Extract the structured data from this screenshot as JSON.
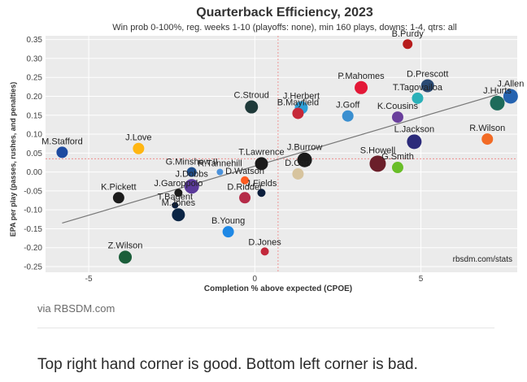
{
  "caption": "via RBSDM.com",
  "body_text": "Top right hand corner is good. Bottom left corner is bad.",
  "chart_data": {
    "type": "scatter",
    "title": "Quarterback Efficiency, 2023",
    "subtitle": "Win prob 0-100%, reg. weeks 1-10 (playoffs: none), min 160 plays, downs: 1-4, qtrs: all",
    "xlabel": "Completion % above expected (CPOE)",
    "ylabel": "EPA per play (passes, rushes, and penalties)",
    "source": "rbsdm.com/stats",
    "xlim": [
      -6.3,
      7.9
    ],
    "ylim": [
      -0.265,
      0.36
    ],
    "x_ticks": [
      -5,
      0,
      5
    ],
    "y_ticks": [
      -0.25,
      -0.2,
      -0.15,
      -0.1,
      -0.05,
      0.0,
      0.05,
      0.1,
      0.15,
      0.2,
      0.25,
      0.3,
      0.35
    ],
    "y_tick_labels": [
      "-0.25",
      "-0.20",
      "-0.15",
      "-0.10",
      "-0.05",
      "0.00",
      "0.05",
      "0.10",
      "0.15",
      "0.20",
      "0.25",
      "0.30",
      "0.35"
    ],
    "grid": true,
    "mean_x": 0.7,
    "mean_y": 0.035,
    "trend_line": {
      "x": [
        -5.8,
        7.3
      ],
      "y": [
        -0.135,
        0.205
      ]
    },
    "colors": {
      "panel_bg": "#ebebeb",
      "grid": "#ffffff",
      "mean_lines": "#f08080",
      "trend": "#777777"
    },
    "points": [
      {
        "name": "B.Purdy",
        "x": 4.6,
        "y": 0.338,
        "size": 6,
        "color": "#b71c1c"
      },
      {
        "name": "P.Mahomes",
        "x": 3.2,
        "y": 0.223,
        "size": 8,
        "color": "#e31837"
      },
      {
        "name": "D.Prescott",
        "x": 5.2,
        "y": 0.228,
        "size": 8,
        "color": "#2a4a73"
      },
      {
        "name": "J.Allen",
        "x": 7.7,
        "y": 0.2,
        "size": 9,
        "color": "#2563b0"
      },
      {
        "name": "J.Hurts",
        "x": 7.3,
        "y": 0.182,
        "size": 9,
        "color": "#1e6b5a"
      },
      {
        "name": "T.Tagovailoa",
        "x": 4.9,
        "y": 0.195,
        "size": 7,
        "color": "#2ab0b8"
      },
      {
        "name": "C.Stroud",
        "x": -0.1,
        "y": 0.172,
        "size": 8,
        "color": "#1f3a3a"
      },
      {
        "name": "J.Herbert",
        "x": 1.4,
        "y": 0.17,
        "size": 8,
        "color": "#2e9fd8"
      },
      {
        "name": "B.Mayfield",
        "x": 1.3,
        "y": 0.155,
        "size": 7,
        "color": "#c62838"
      },
      {
        "name": "J.Goff",
        "x": 2.8,
        "y": 0.148,
        "size": 7,
        "color": "#3a8fd0"
      },
      {
        "name": "K.Cousins",
        "x": 4.3,
        "y": 0.145,
        "size": 7,
        "color": "#6a3f9c"
      },
      {
        "name": "R.Wilson",
        "x": 7.0,
        "y": 0.087,
        "size": 7,
        "color": "#f26b25"
      },
      {
        "name": "L.Jackson",
        "x": 4.8,
        "y": 0.08,
        "size": 9,
        "color": "#2b2a7a"
      },
      {
        "name": "S.Howell",
        "x": 3.7,
        "y": 0.022,
        "size": 10,
        "color": "#6b1f2a"
      },
      {
        "name": "G.Smith",
        "x": 4.3,
        "y": 0.012,
        "size": 7,
        "color": "#69be28"
      },
      {
        "name": "M.Stafford",
        "x": -5.8,
        "y": 0.052,
        "size": 7,
        "color": "#1e4ba0"
      },
      {
        "name": "J.Love",
        "x": -3.5,
        "y": 0.062,
        "size": 7,
        "color": "#ffb612"
      },
      {
        "name": "T.Lawrence",
        "x": 0.2,
        "y": 0.022,
        "size": 8,
        "color": "#1b1b1b"
      },
      {
        "name": "J.Burrow",
        "x": 1.5,
        "y": 0.032,
        "size": 9,
        "color": "#1b1b1b"
      },
      {
        "name": "D.Carr",
        "x": 1.3,
        "y": -0.005,
        "size": 7,
        "color": "#d7c49e"
      },
      {
        "name": "G.Minshew II",
        "x": -1.9,
        "y": 0.0,
        "size": 6,
        "color": "#1e4e8c"
      },
      {
        "name": "R.Tannehill",
        "x": -1.05,
        "y": 0.0,
        "size": 4,
        "color": "#4b92db"
      },
      {
        "name": "D.Watson",
        "x": -0.3,
        "y": -0.022,
        "size": 5,
        "color": "#ff5a1f"
      },
      {
        "name": "J.Dobbs",
        "x": -1.9,
        "y": -0.038,
        "size": 9,
        "color": "#5b3a9a"
      },
      {
        "name": "J.Fields",
        "x": 0.2,
        "y": -0.055,
        "size": 5,
        "color": "#0b1e3c"
      },
      {
        "name": "D.Ridder",
        "x": -0.3,
        "y": -0.068,
        "size": 7,
        "color": "#b52b48"
      },
      {
        "name": "K.Pickett",
        "x": -4.1,
        "y": -0.068,
        "size": 7,
        "color": "#1b1b1b"
      },
      {
        "name": "J.Garoppolo",
        "x": -2.3,
        "y": -0.055,
        "size": 5,
        "color": "#1b1b1b"
      },
      {
        "name": "T.Bagent",
        "x": -2.4,
        "y": -0.088,
        "size": 4,
        "color": "#0b1e3c"
      },
      {
        "name": "M.Jones",
        "x": -2.3,
        "y": -0.113,
        "size": 8,
        "color": "#0b2545"
      },
      {
        "name": "B.Young",
        "x": -0.8,
        "y": -0.158,
        "size": 7,
        "color": "#1e88e5"
      },
      {
        "name": "D.Jones",
        "x": 0.3,
        "y": -0.21,
        "size": 5,
        "color": "#c2283b"
      },
      {
        "name": "Z.Wilson",
        "x": -3.9,
        "y": -0.225,
        "size": 8,
        "color": "#1b5e3a"
      }
    ]
  }
}
